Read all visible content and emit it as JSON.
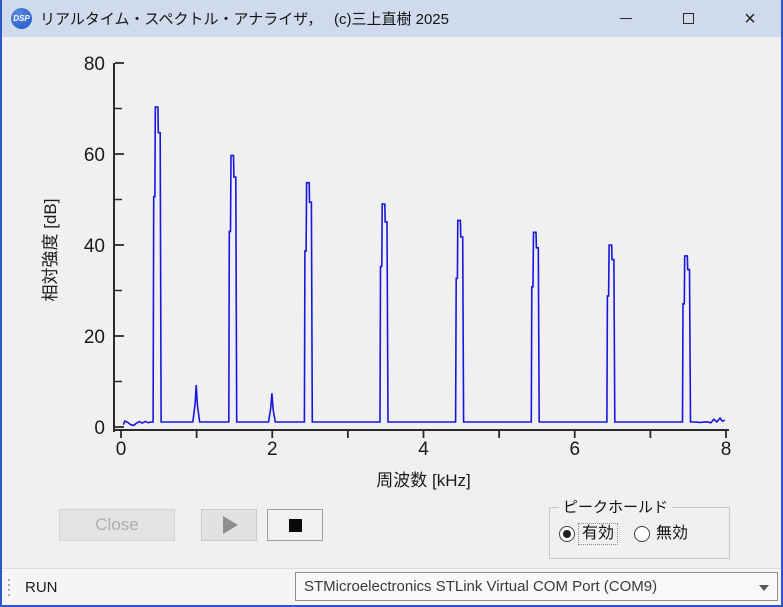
{
  "window": {
    "title": "リアルタイム・スペクトル・アナライザ，　 (c)三上直樹 2025",
    "app_icon_text": "DSP"
  },
  "chart_data": {
    "type": "line",
    "title": "",
    "xlabel": "周波数 [kHz]",
    "ylabel": "相対強度 [dB]",
    "xlim": [
      0,
      8
    ],
    "ylim": [
      0,
      80
    ],
    "x_labeled_ticks": [
      0,
      2,
      4,
      6,
      8
    ],
    "x_all_ticks": [
      0,
      1,
      2,
      3,
      4,
      5,
      6,
      7,
      8
    ],
    "y_labeled_ticks": [
      0,
      20,
      40,
      60,
      80
    ],
    "y_minor_ticks": [
      10,
      30,
      50,
      70
    ],
    "grid": false,
    "legend": false,
    "baseline_db": 1.1,
    "peaks": [
      {
        "freq_khz": 0.5,
        "db": 70.3
      },
      {
        "freq_khz": 1.0,
        "db": 9.2
      },
      {
        "freq_khz": 1.5,
        "db": 59.7
      },
      {
        "freq_khz": 2.0,
        "db": 7.4
      },
      {
        "freq_khz": 2.5,
        "db": 53.7
      },
      {
        "freq_khz": 3.5,
        "db": 49.0
      },
      {
        "freq_khz": 4.5,
        "db": 45.4
      },
      {
        "freq_khz": 5.5,
        "db": 42.8
      },
      {
        "freq_khz": 6.5,
        "db": 40.0
      },
      {
        "freq_khz": 7.5,
        "db": 37.6
      }
    ],
    "line_color": "#1717dd",
    "axis_color": "#2b2b2b",
    "text_color": "#1a1a1a"
  },
  "controls": {
    "close_label": "Close",
    "play_icon": "play-triangle",
    "stop_icon": "stop-square"
  },
  "peak_hold": {
    "group_label": "ピークホールド",
    "options": [
      {
        "label": "有効",
        "selected": true
      },
      {
        "label": "無効",
        "selected": false
      }
    ]
  },
  "status_bar": {
    "run_label": "RUN",
    "com_port": "STMicroelectronics STLink Virtual COM Port (COM9)"
  },
  "colors": {
    "titlebar_bg": "#cfdbec",
    "window_border": "#2b57c8",
    "window_bg": "#f0f0f0",
    "trace": "#1717dd"
  }
}
